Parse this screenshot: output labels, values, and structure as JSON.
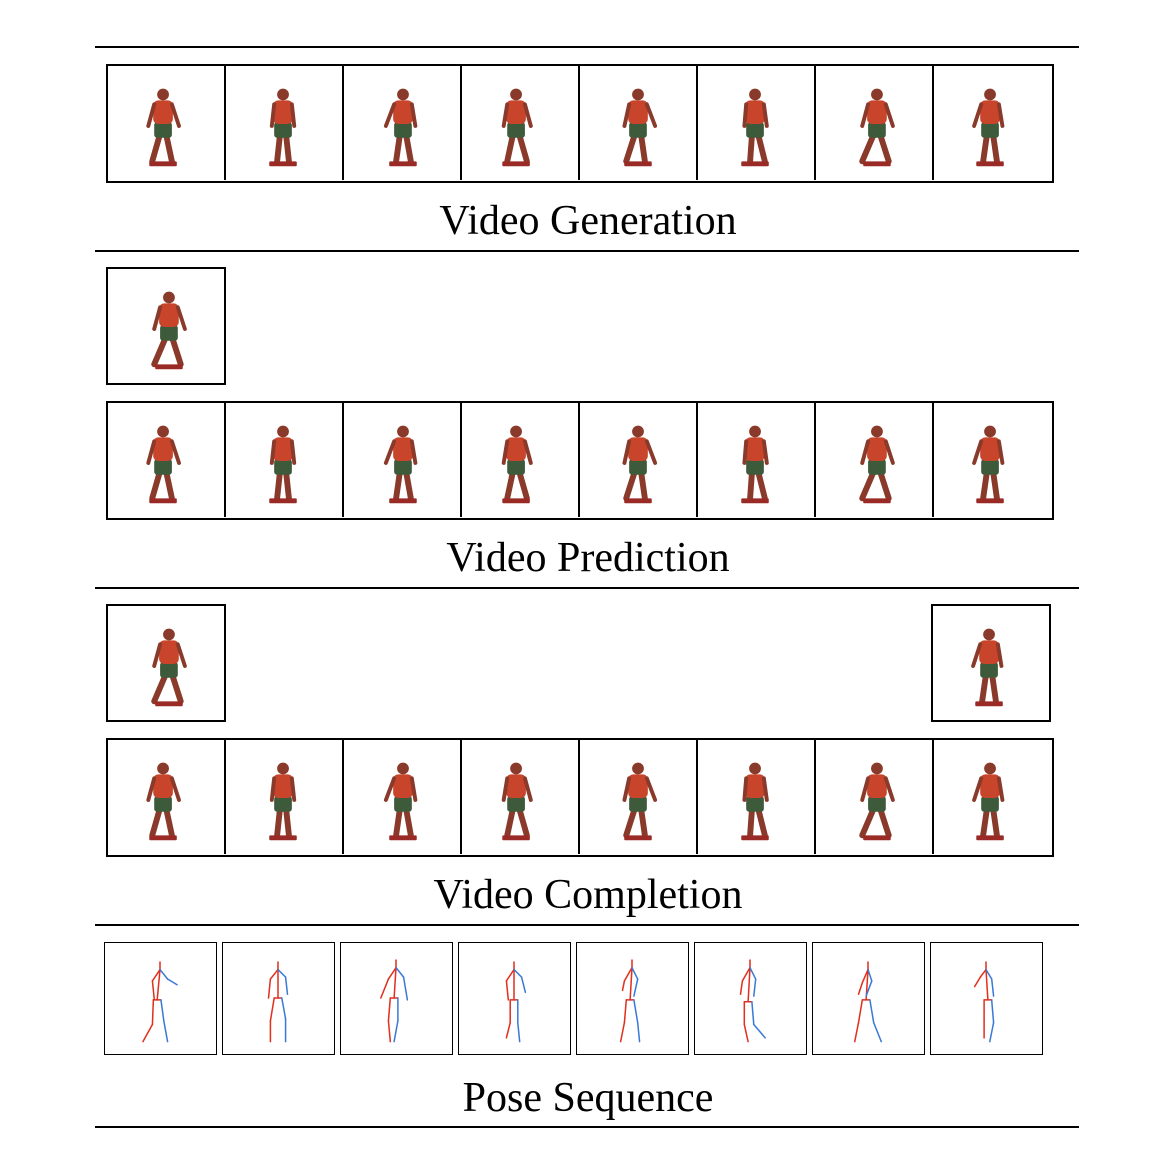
{
  "sections": {
    "generation": {
      "caption": "Video Generation"
    },
    "prediction": {
      "caption": "Video Prediction"
    },
    "completion": {
      "caption": "Video Completion"
    },
    "pose": {
      "caption": "Pose Sequence"
    }
  },
  "colors": {
    "shirt": "#c8442b",
    "shorts": "#3d5a3a",
    "skin": "#8a3a2a",
    "limb_red": "#e0301e",
    "limb_blue": "#3a7ad6"
  },
  "frame_count": 8
}
